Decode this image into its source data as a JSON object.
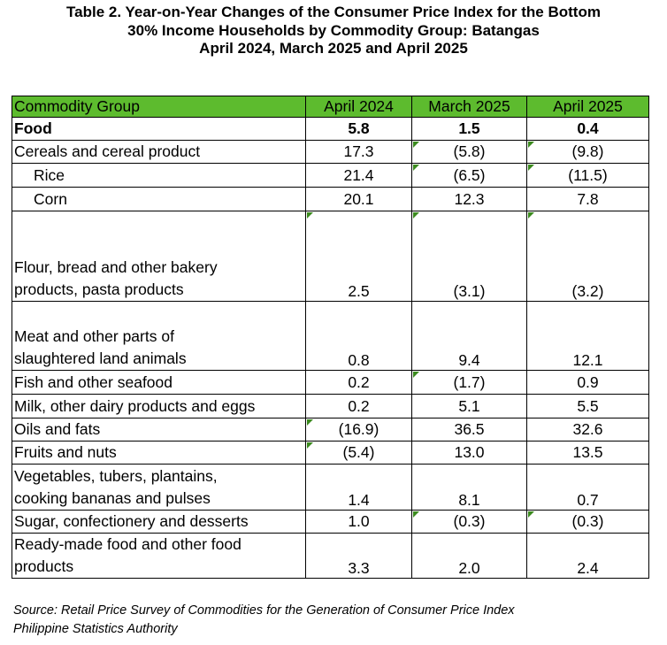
{
  "title": {
    "line1": "Table 2. Year-on-Year Changes of the Consumer Price Index for the Bottom",
    "line2": "30% Income Households by Commodity Group: Batangas",
    "line3": "April 2024, March 2025 and April 2025"
  },
  "table": {
    "headers": [
      "Commodity Group",
      "April 2024",
      "March 2025",
      "April 2025"
    ],
    "rows": [
      {
        "group": "Food",
        "apr2024": "5.8",
        "mar2025": "1.5",
        "apr2025": "0.4"
      },
      {
        "group": "Cereals and cereal product",
        "apr2024": "17.3",
        "mar2025": "(5.8)",
        "apr2025": "(9.8)"
      },
      {
        "group": "Rice",
        "apr2024": "21.4",
        "mar2025": "(6.5)",
        "apr2025": "(11.5)"
      },
      {
        "group": "Corn",
        "apr2024": "20.1",
        "mar2025": "12.3",
        "apr2025": "7.8"
      },
      {
        "group_line1": "Flour, bread and other bakery",
        "group_line2": "products, pasta products",
        "apr2024": "2.5",
        "mar2025": "(3.1)",
        "apr2025": "(3.2)"
      },
      {
        "group_line1": "Meat and other parts of",
        "group_line2": "slaughtered land animals",
        "apr2024": "0.8",
        "mar2025": "9.4",
        "apr2025": "12.1"
      },
      {
        "group": "Fish and other seafood",
        "apr2024": "0.2",
        "mar2025": "(1.7)",
        "apr2025": "0.9"
      },
      {
        "group": "Milk, other dairy products and eggs",
        "apr2024": "0.2",
        "mar2025": "5.1",
        "apr2025": "5.5"
      },
      {
        "group": "Oils and fats",
        "apr2024": "(16.9)",
        "mar2025": "36.5",
        "apr2025": "32.6"
      },
      {
        "group": "Fruits and nuts",
        "apr2024": "(5.4)",
        "mar2025": "13.0",
        "apr2025": "13.5"
      },
      {
        "group_line1": "Vegetables, tubers, plantains,",
        "group_line2": "cooking bananas and pulses",
        "apr2024": "1.4",
        "mar2025": "8.1",
        "apr2025": "0.7"
      },
      {
        "group": "Sugar, confectionery and desserts",
        "apr2024": "1.0",
        "mar2025": "(0.3)",
        "apr2025": "(0.3)"
      },
      {
        "group_line1": "Ready-made food and other food",
        "group_line2": "products",
        "apr2024": "3.3",
        "mar2025": "2.0",
        "apr2025": "2.4"
      }
    ]
  },
  "source": {
    "line1": "Source: Retail Price Survey of Commodities for the Generation of Consumer Price Index",
    "line2": "Philippine Statistics Authority"
  },
  "colors": {
    "header_fill": "#5dbb2e",
    "error_indicator": "#3b8a1e"
  }
}
